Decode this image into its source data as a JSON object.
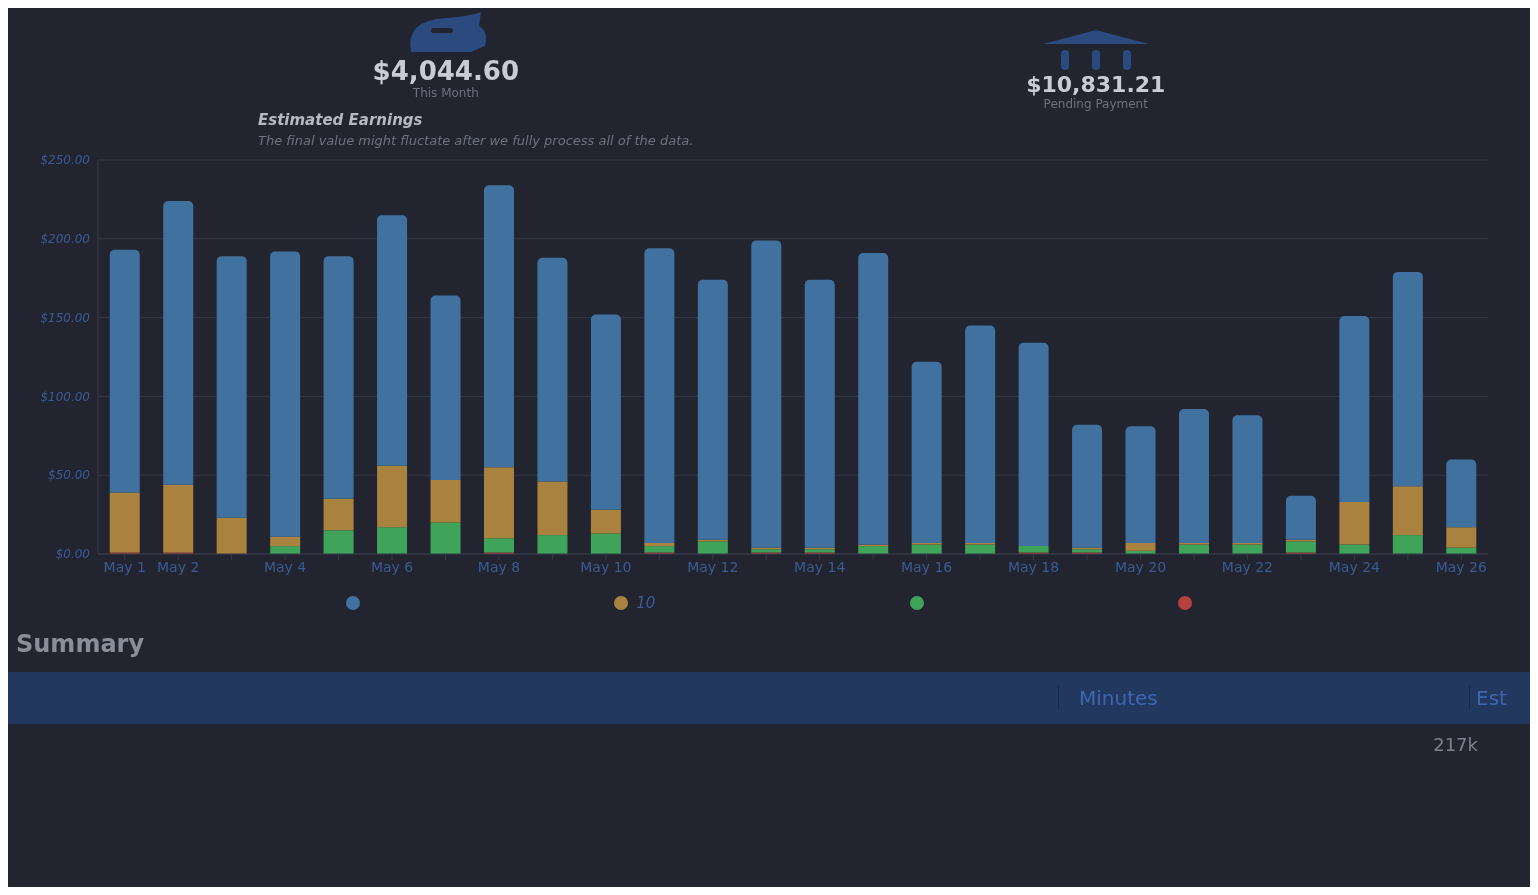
{
  "chart_data": {
    "type": "bar",
    "stacked": true,
    "title": "Estimated Earnings",
    "subtitle": "The final value might fluctate after we fully process all of the data.",
    "categories": [
      "May 1",
      "May 2",
      null,
      "May 4",
      null,
      "May 6",
      null,
      "May 8",
      null,
      "May 10",
      null,
      "May 12",
      null,
      "May 14",
      null,
      "May 16",
      null,
      "May 18",
      null,
      "May 20",
      null,
      "May 22",
      null,
      "May 24",
      null,
      "May 26"
    ],
    "series": [
      {
        "color": "#b5413f",
        "values": [
          1,
          1,
          0,
          0,
          0,
          0,
          0,
          1,
          0,
          0,
          1,
          0,
          1,
          1,
          0,
          0,
          0,
          1,
          1,
          0,
          0,
          0,
          1,
          0,
          0,
          0
        ]
      },
      {
        "color": "#3fa35a",
        "values": [
          0,
          0,
          0,
          5,
          15,
          17,
          20,
          9,
          12,
          13,
          4,
          8,
          2,
          2,
          5,
          6,
          6,
          4,
          2,
          2,
          6,
          6,
          7,
          6,
          12,
          4
        ]
      },
      {
        "name": "10",
        "color": "#a9823f",
        "values": [
          38,
          43,
          23,
          6,
          20,
          39,
          27,
          45,
          34,
          15,
          2,
          1,
          1,
          1,
          1,
          1,
          1,
          0,
          1,
          5,
          1,
          1,
          1,
          27,
          31,
          13
        ]
      },
      {
        "color": "#41729f",
        "values": [
          154,
          180,
          166,
          181,
          154,
          159,
          117,
          179,
          142,
          124,
          187,
          165,
          195,
          170,
          185,
          115,
          138,
          129,
          78,
          74,
          85,
          81,
          28,
          118,
          136,
          43
        ]
      }
    ],
    "ylim": [
      0,
      250
    ],
    "yticks": [
      {
        "value": 0,
        "label": "$0.00"
      },
      {
        "value": 50,
        "label": "$50.00"
      },
      {
        "value": 100,
        "label": "$100.00"
      },
      {
        "value": 150,
        "label": "$150.00"
      },
      {
        "value": 200,
        "label": "$200.00"
      },
      {
        "value": 250,
        "label": "$250.00"
      }
    ],
    "grid": "y",
    "legend": "bottom",
    "annotations": [
      "$4,044.60",
      "This Month",
      "$10,831.21",
      "Pending Payment",
      "Summary",
      "Minutes",
      "Est",
      "217k"
    ]
  }
}
